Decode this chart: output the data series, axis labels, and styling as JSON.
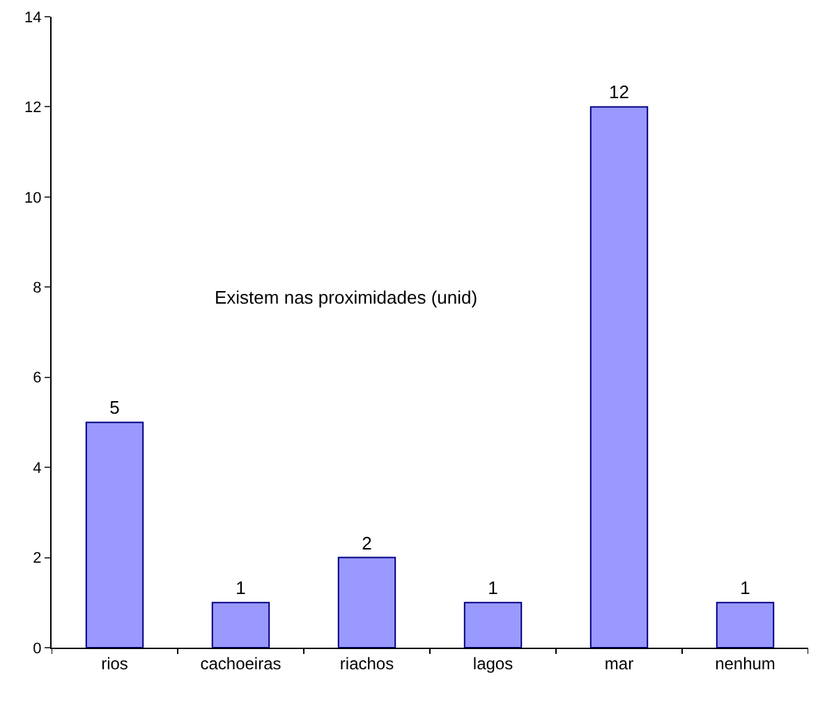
{
  "chart_data": {
    "type": "bar",
    "title": "Existem nas proximidades (unid)",
    "categories": [
      "rios",
      "cachoeiras",
      "riachos",
      "lagos",
      "mar",
      "nenhum"
    ],
    "values": [
      5,
      1,
      2,
      1,
      12,
      1
    ],
    "color": "#9999ff",
    "ylim": [
      0,
      14
    ],
    "yticks": [
      0,
      2,
      4,
      6,
      8,
      10,
      12,
      14
    ],
    "data_labels": true
  }
}
